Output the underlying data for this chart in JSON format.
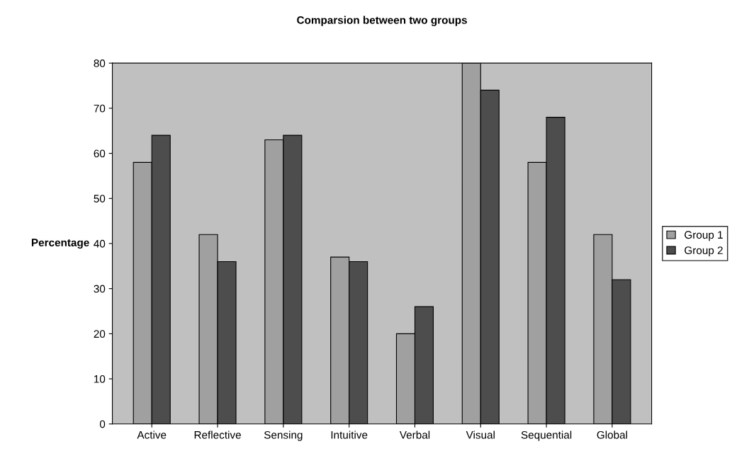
{
  "chart_data": {
    "type": "bar",
    "title": "Comparsion between two groups",
    "ylabel": "Percentage",
    "categories": [
      "Active",
      "Reflective",
      "Sensing",
      "Intuitive",
      "Verbal",
      "Visual",
      "Sequential",
      "Global"
    ],
    "series": [
      {
        "name": "Group 1",
        "color": "#a0a0a0",
        "values": [
          58,
          42,
          63,
          37,
          20,
          80,
          58,
          42
        ]
      },
      {
        "name": "Group 2",
        "color": "#4d4d4d",
        "values": [
          64,
          36,
          64,
          36,
          26,
          74,
          68,
          32
        ]
      }
    ],
    "ylim": [
      0,
      80
    ],
    "yticks": [
      0,
      10,
      20,
      30,
      40,
      50,
      60,
      70,
      80
    ],
    "grid": false,
    "legend": "right"
  }
}
